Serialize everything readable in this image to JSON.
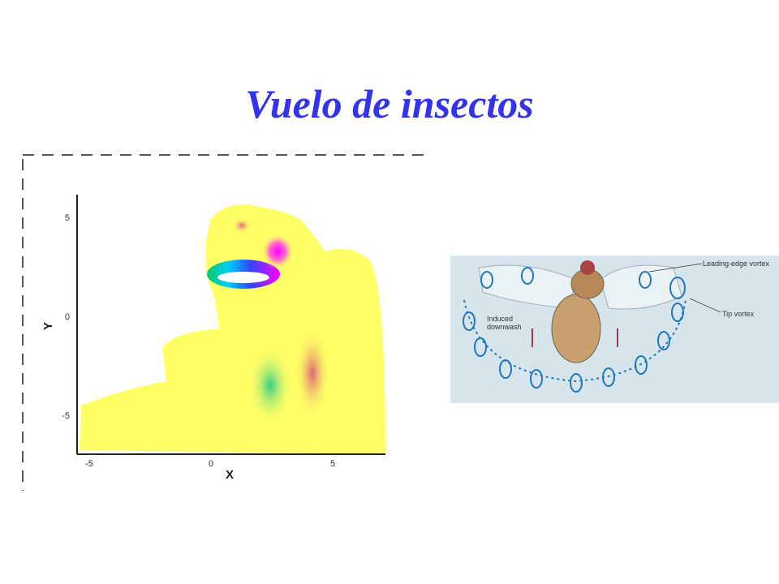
{
  "title": "Vuelo de insectos",
  "left_figure": {
    "x_label": "X",
    "y_label": "Y",
    "x_ticks": [
      "-5",
      "0",
      "5"
    ],
    "y_ticks": [
      "5",
      "0",
      "-5"
    ]
  },
  "right_figure": {
    "labels": {
      "leading_edge": "Leading-edge vortex",
      "tip": "Tip vortex",
      "downwash": "Induced downwash"
    }
  }
}
